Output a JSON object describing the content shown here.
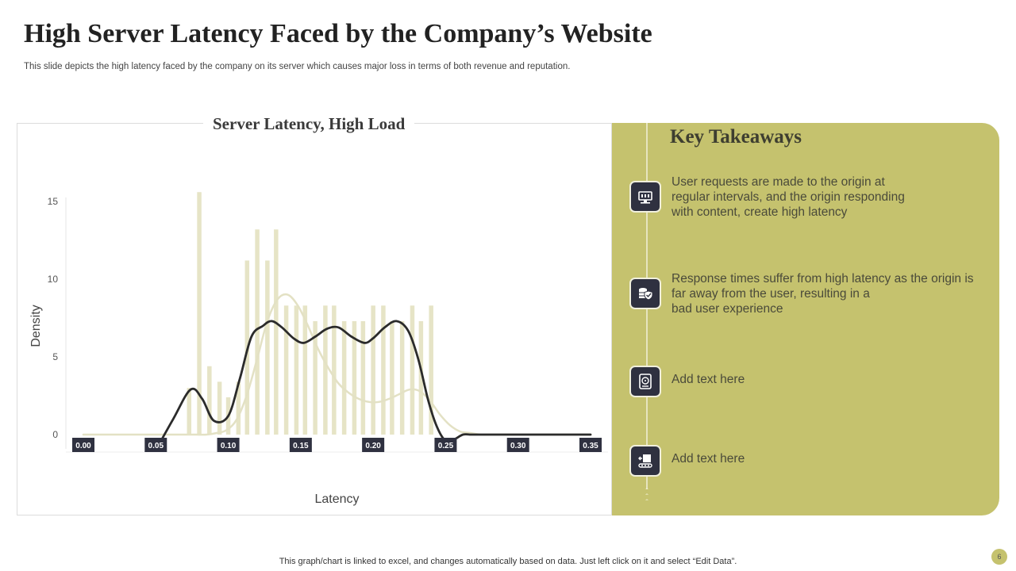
{
  "slide": {
    "title": "High Server Latency Faced by the Company’s Website",
    "subtitle": "This slide depicts the high latency faced by the company on its server which causes major loss in terms of both revenue and reputation.",
    "footer": "This graph/chart is linked to excel,  and changes automatically based on data. Just left click on it and select “Edit Data”.",
    "page_number": "6"
  },
  "takeaways": {
    "title": "Key Takeaways",
    "items": [
      {
        "icon": "server-monitor-icon",
        "text": "User requests are made to the origin at\nregular intervals, and the origin responding\nwith content, create high latency"
      },
      {
        "icon": "database-shield-icon",
        "text": "Response times suffer from high latency as the origin is\nfar away from the user, resulting in a\nbad user experience"
      },
      {
        "icon": "hard-drive-icon",
        "text": "Add text here"
      },
      {
        "icon": "server-conveyor-icon",
        "text": "Add text here"
      }
    ]
  },
  "colors": {
    "accent": "#c5c26e",
    "bar": "#e6e4c6",
    "kde_line": "#2b2b2b",
    "normal_curve": "#e3e1c4",
    "icon_bg": "#2f3140"
  },
  "chart_data": {
    "type": "bar",
    "title": "Server Latency, High Load",
    "xlabel": "Latency",
    "ylabel": "Density",
    "xlim": [
      0.0,
      0.35
    ],
    "ylim": [
      0,
      15
    ],
    "x_ticks": [
      "0.00",
      "0.05",
      "0.10",
      "0.15",
      "0.20",
      "0.25",
      "0.30",
      "0.35"
    ],
    "y_ticks": [
      0,
      5,
      10,
      15
    ],
    "histogram": {
      "bin_centers": [
        0.073,
        0.08,
        0.087,
        0.094,
        0.1,
        0.107,
        0.113,
        0.12,
        0.127,
        0.133,
        0.14,
        0.147,
        0.153,
        0.16,
        0.167,
        0.173,
        0.18,
        0.187,
        0.193,
        0.2,
        0.207,
        0.213,
        0.22,
        0.227,
        0.233,
        0.24
      ],
      "values": [
        3,
        15.6,
        4.4,
        3.4,
        2.4,
        3.4,
        11.2,
        13.2,
        11.2,
        13.2,
        8.3,
        8.3,
        8.3,
        7.3,
        8.3,
        8.3,
        7.3,
        7.3,
        7.3,
        8.3,
        8.3,
        7.3,
        7.3,
        8.3,
        7.3,
        8.3
      ]
    },
    "series": [
      {
        "type": "line",
        "x": [
          0.0,
          0.05,
          0.057,
          0.064,
          0.071,
          0.078,
          0.085,
          0.092,
          0.099,
          0.106,
          0.113,
          0.12,
          0.127,
          0.134,
          0.141,
          0.148,
          0.155,
          0.162,
          0.169,
          0.176,
          0.183,
          0.19,
          0.197,
          0.204,
          0.211,
          0.218,
          0.225,
          0.232,
          0.239,
          0.246,
          0.253,
          0.26,
          0.267,
          0.274,
          0.28,
          0.3,
          0.35
        ],
        "y": [
          0,
          0,
          0,
          0,
          0,
          0,
          0,
          0.1,
          0.3,
          1.0,
          2.6,
          4.9,
          7.3,
          8.7,
          9.0,
          8.3,
          7.0,
          5.5,
          4.3,
          3.3,
          2.7,
          2.3,
          2.1,
          2.1,
          2.3,
          2.6,
          2.9,
          2.8,
          2.2,
          1.3,
          0.6,
          0.2,
          0.1,
          0,
          0,
          0,
          0
        ]
      },
      {
        "type": "line",
        "x": [
          0.05,
          0.062,
          0.074,
          0.082,
          0.09,
          0.1,
          0.108,
          0.116,
          0.124,
          0.13,
          0.137,
          0.145,
          0.152,
          0.16,
          0.168,
          0.176,
          0.185,
          0.194,
          0.2,
          0.208,
          0.216,
          0.224,
          0.231,
          0.238,
          0.244,
          0.25,
          0.256,
          0.262,
          0.268,
          0.28,
          0.3,
          0.35
        ],
        "y": [
          -1,
          1,
          2.9,
          2.3,
          0.9,
          1.2,
          3.6,
          6.3,
          7.0,
          7.3,
          6.9,
          6.2,
          5.9,
          6.3,
          6.8,
          6.9,
          6.3,
          5.9,
          6.2,
          6.9,
          7.3,
          6.7,
          4.9,
          2.2,
          0.5,
          -0.4,
          -0.3,
          0,
          0,
          0,
          0,
          0
        ]
      }
    ]
  }
}
